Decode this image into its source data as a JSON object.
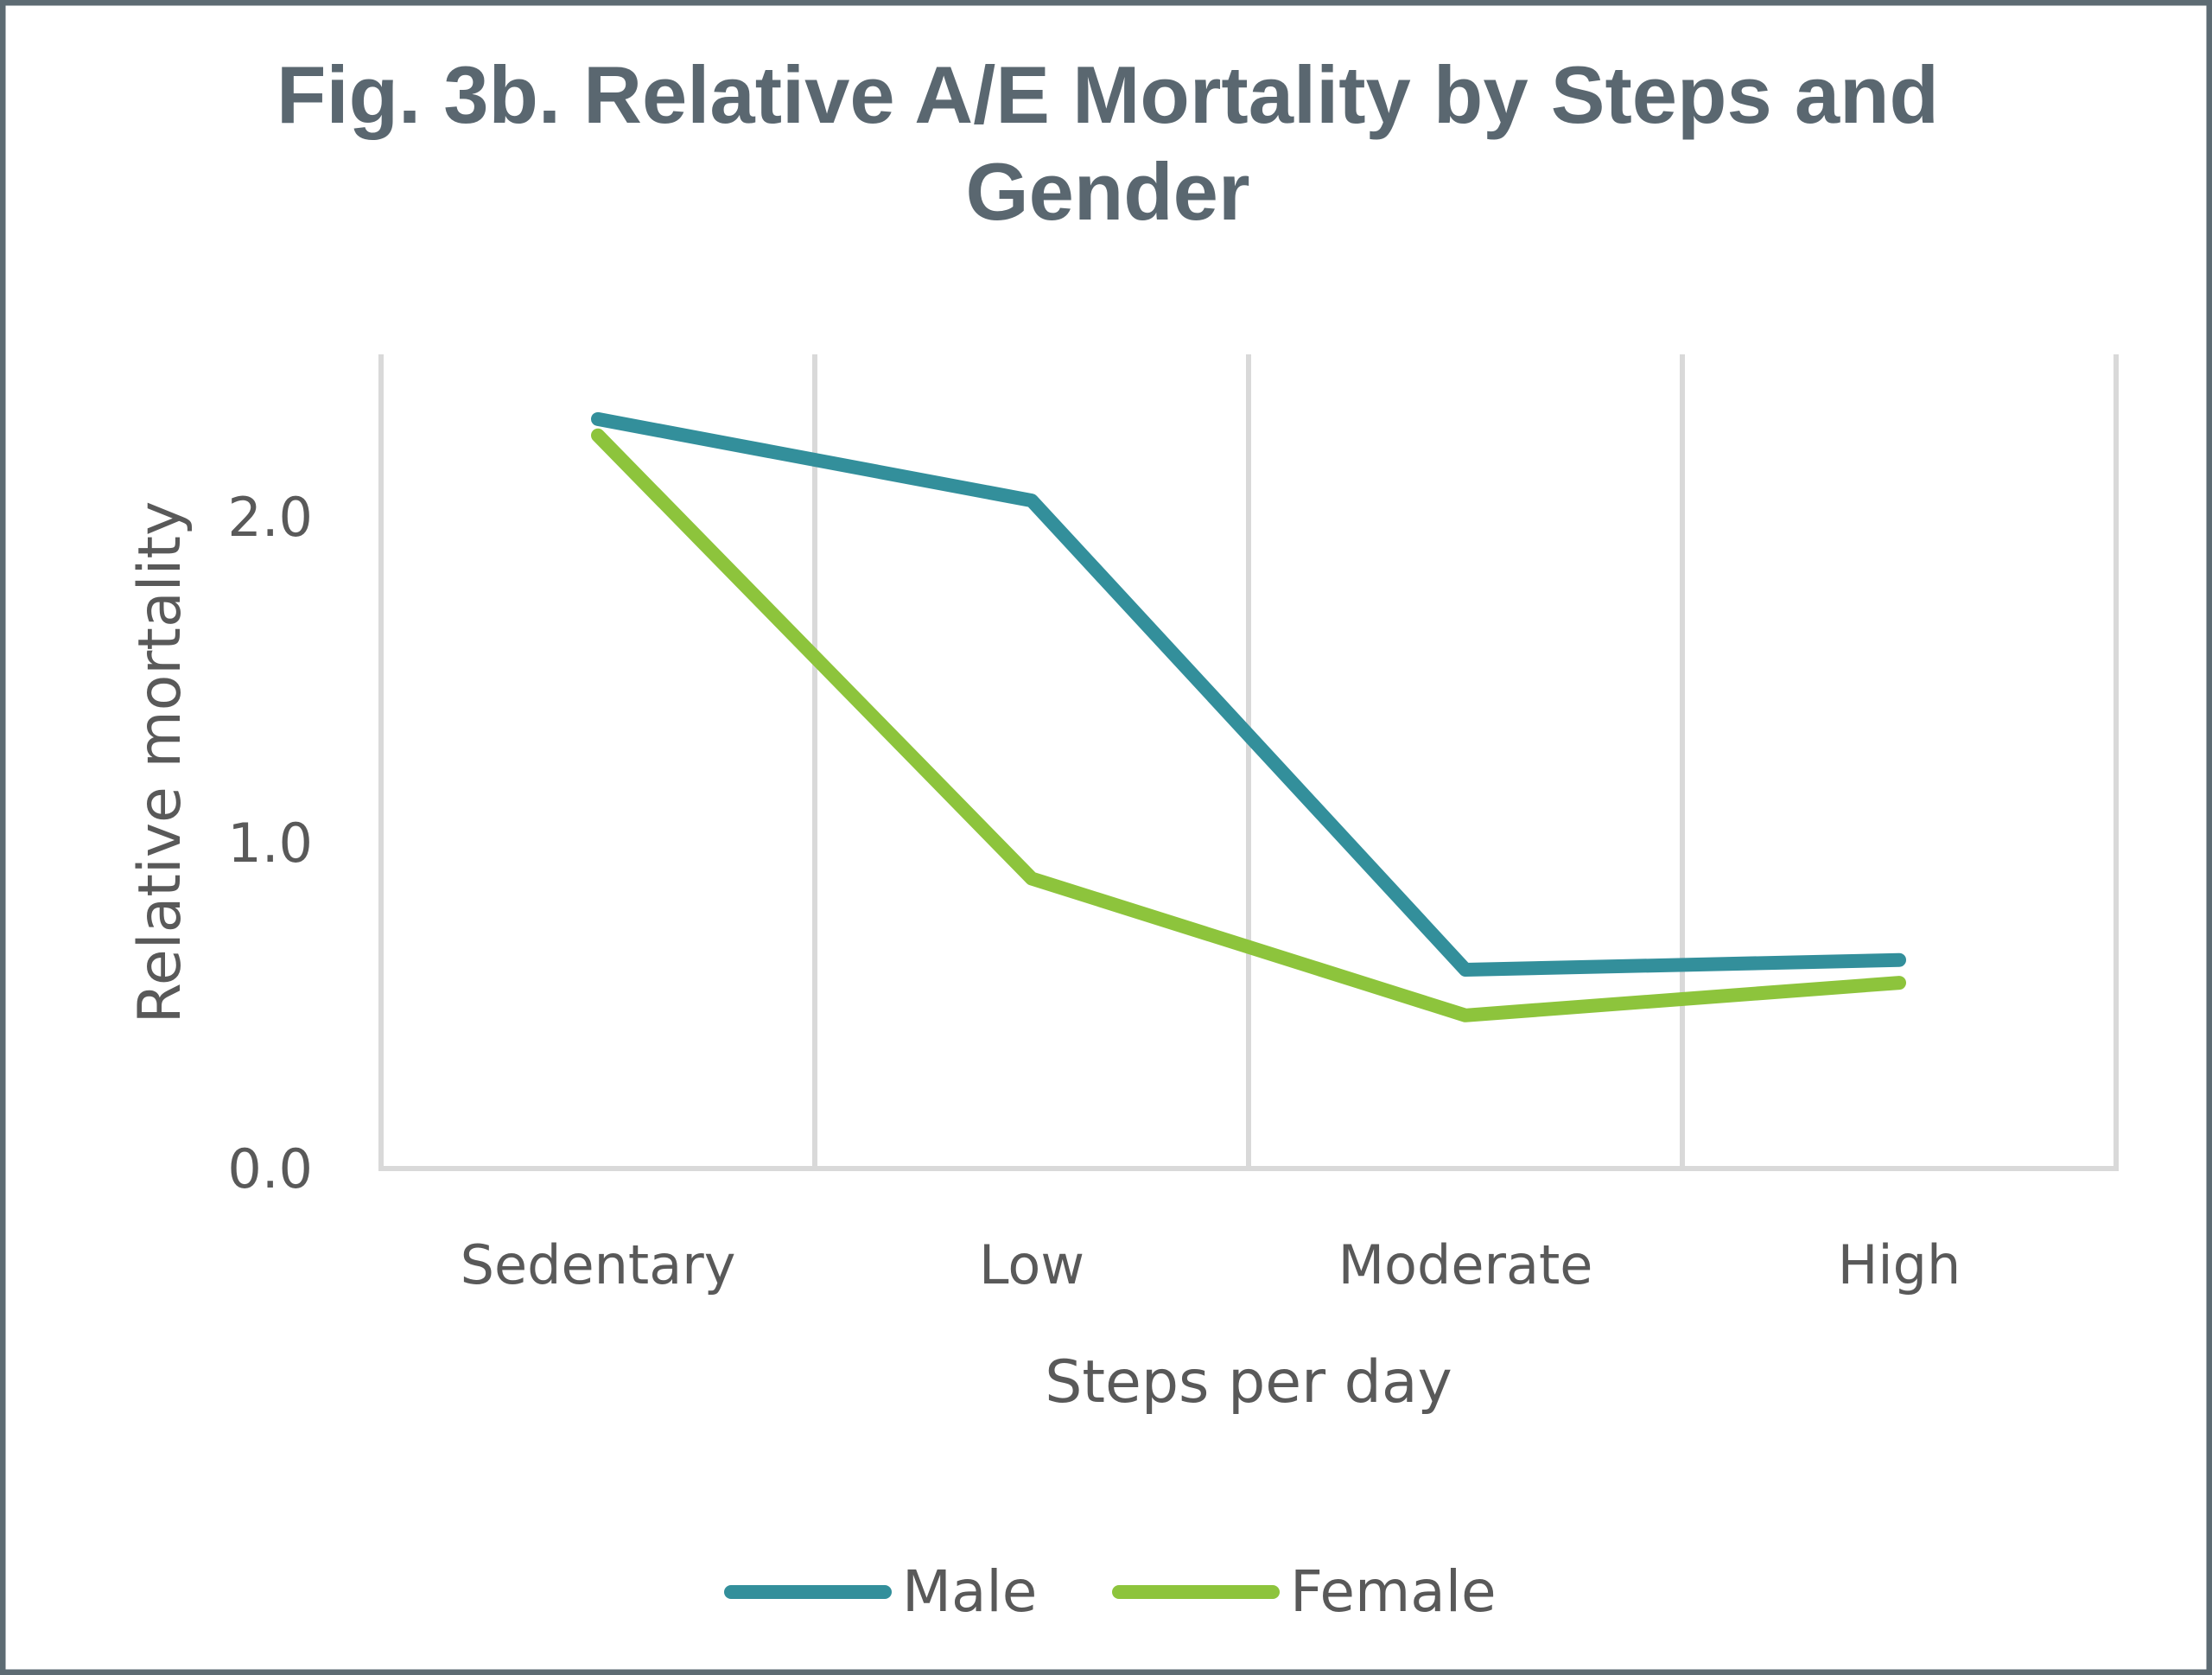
{
  "chart_data": {
    "type": "line",
    "title_lines": [
      "Fig. 3b. Relative A/E Mortality by Steps and",
      "Gender"
    ],
    "xlabel": "Steps per day",
    "ylabel": "Relative mortality",
    "categories": [
      "Sedentary",
      "Low",
      "Moderate",
      "High"
    ],
    "ylim": [
      0,
      2.5
    ],
    "yticks": [
      "0.0",
      "1.0",
      "2.0"
    ],
    "ytick_values": [
      0,
      1,
      2
    ],
    "grid": "vertical",
    "legend_position": "bottom",
    "series": [
      {
        "name": "Male",
        "color": "#338f9b",
        "values": [
          2.3,
          2.05,
          0.61,
          0.64
        ]
      },
      {
        "name": "Female",
        "color": "#8dc43c",
        "values": [
          2.25,
          0.89,
          0.47,
          0.57
        ]
      }
    ]
  }
}
